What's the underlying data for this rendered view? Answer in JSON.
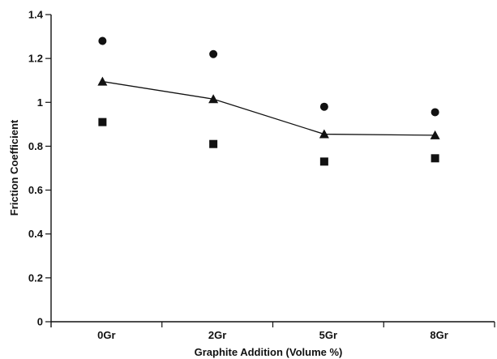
{
  "chart_data": {
    "type": "scatter",
    "title": "",
    "xlabel": "Graphite Addition (Volume %)",
    "ylabel": "Friction Coefficient",
    "categories": [
      "0Gr",
      "2Gr",
      "5Gr",
      "8Gr"
    ],
    "ylim": [
      0,
      1.4
    ],
    "yticks": [
      0,
      0.2,
      0.4,
      0.6,
      0.8,
      1,
      1.2,
      1.4
    ],
    "ytick_labels": [
      "0",
      "0.2",
      "0.4",
      "0.6",
      "0.8",
      "1",
      "1.2",
      "1.4"
    ],
    "grid": false,
    "legend": "none",
    "series": [
      {
        "marker": "circle",
        "connected": false,
        "values": [
          1.28,
          1.22,
          0.98,
          0.955
        ]
      },
      {
        "marker": "triangle",
        "connected": true,
        "values": [
          1.095,
          1.015,
          0.855,
          0.85
        ]
      },
      {
        "marker": "square",
        "connected": false,
        "values": [
          0.91,
          0.81,
          0.73,
          0.745
        ]
      }
    ]
  }
}
